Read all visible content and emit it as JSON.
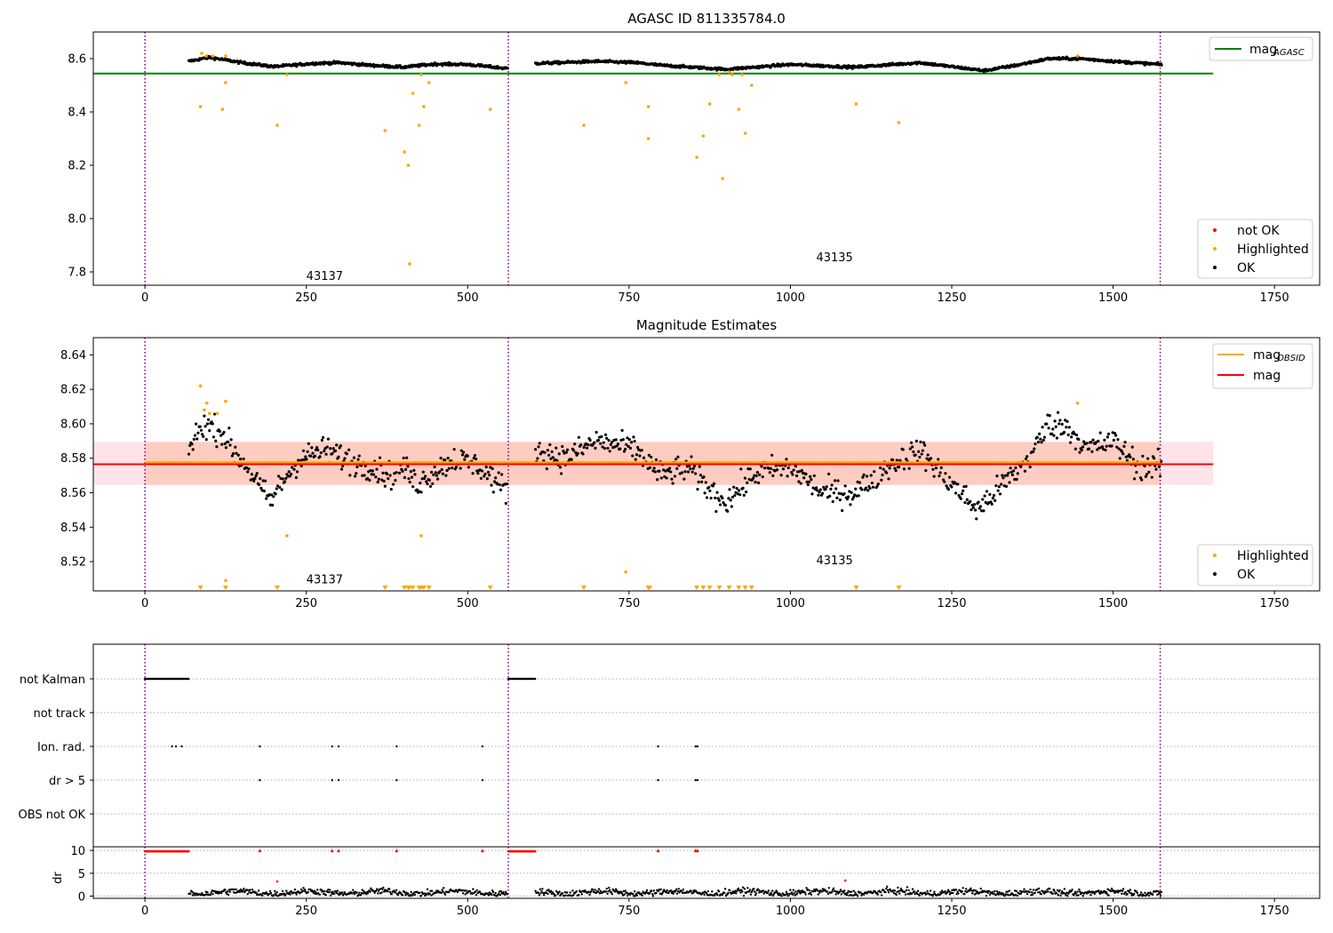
{
  "chart_data": [
    {
      "type": "scatter",
      "title": "AGASC ID 811335784.0",
      "xlim": [
        -80,
        1820
      ],
      "ylim": [
        7.75,
        8.7
      ],
      "xticks": [
        0,
        250,
        500,
        750,
        1000,
        1250,
        1500,
        1750
      ],
      "yticks": [
        7.8,
        8.0,
        8.2,
        8.4,
        8.6
      ],
      "vlines": [
        0,
        563,
        1573
      ],
      "obsid_labels": [
        {
          "text": "43137",
          "x": 250,
          "y": 7.77
        },
        {
          "text": "43135",
          "x": 1040,
          "y": 7.84
        }
      ],
      "ref_line": {
        "name": "mag_AGASC",
        "y": 8.544,
        "x": [
          -80,
          1655
        ],
        "color": "#008000"
      },
      "legend_top": {
        "label": "mag",
        "sub": "AGASC",
        "color": "#008000"
      },
      "legend_bottom": [
        {
          "label": "not OK",
          "color": "#ff0000"
        },
        {
          "label": "Highlighted",
          "color": "#ffa500"
        },
        {
          "label": "OK",
          "color": "#000000"
        }
      ],
      "ok_segments": [
        {
          "x_range": [
            68,
            562
          ],
          "base": [
            [
              68,
              8.59
            ],
            [
              100,
              8.605
            ],
            [
              150,
              8.585
            ],
            [
              200,
              8.57
            ],
            [
              260,
              8.582
            ],
            [
              300,
              8.585
            ],
            [
              350,
              8.575
            ],
            [
              400,
              8.568
            ],
            [
              450,
              8.58
            ],
            [
              500,
              8.578
            ],
            [
              562,
              8.563
            ]
          ]
        },
        {
          "x_range": [
            605,
            1575
          ],
          "base": [
            [
              605,
              8.582
            ],
            [
              700,
              8.59
            ],
            [
              760,
              8.585
            ],
            [
              800,
              8.575
            ],
            [
              900,
              8.56
            ],
            [
              1000,
              8.578
            ],
            [
              1100,
              8.568
            ],
            [
              1200,
              8.585
            ],
            [
              1300,
              8.555
            ],
            [
              1350,
              8.575
            ],
            [
              1400,
              8.6
            ],
            [
              1450,
              8.6
            ],
            [
              1500,
              8.59
            ],
            [
              1575,
              8.578
            ]
          ]
        }
      ],
      "highlighted": [
        [
          86,
          8.42
        ],
        [
          88,
          8.62
        ],
        [
          95,
          8.61
        ],
        [
          105,
          8.61
        ],
        [
          120,
          8.41
        ],
        [
          125,
          8.61
        ],
        [
          125,
          8.51
        ],
        [
          205,
          8.35
        ],
        [
          220,
          8.54
        ],
        [
          372,
          8.33
        ],
        [
          402,
          8.25
        ],
        [
          408,
          8.2
        ],
        [
          410,
          7.83
        ],
        [
          415,
          8.47
        ],
        [
          425,
          8.35
        ],
        [
          428,
          8.54
        ],
        [
          432,
          8.42
        ],
        [
          440,
          8.51
        ],
        [
          535,
          8.41
        ],
        [
          680,
          8.35
        ],
        [
          745,
          8.51
        ],
        [
          780,
          8.42
        ],
        [
          780,
          8.3
        ],
        [
          855,
          8.23
        ],
        [
          865,
          8.31
        ],
        [
          875,
          8.43
        ],
        [
          890,
          8.54
        ],
        [
          895,
          8.15
        ],
        [
          905,
          8.55
        ],
        [
          910,
          8.54
        ],
        [
          920,
          8.41
        ],
        [
          925,
          8.54
        ],
        [
          930,
          8.32
        ],
        [
          940,
          8.5
        ],
        [
          1102,
          8.43
        ],
        [
          1168,
          8.36
        ],
        [
          1445,
          8.61
        ]
      ]
    },
    {
      "type": "scatter",
      "title": "Magnitude Estimates",
      "xlim": [
        -80,
        1820
      ],
      "ylim": [
        8.503,
        8.65
      ],
      "xticks": [
        0,
        250,
        500,
        750,
        1000,
        1250,
        1500,
        1750
      ],
      "yticks": [
        8.52,
        8.54,
        8.56,
        8.58,
        8.6,
        8.62,
        8.64
      ],
      "vlines": [
        0,
        563,
        1573
      ],
      "obsid_labels": [
        {
          "text": "43137",
          "x": 250,
          "y": 8.5075
        },
        {
          "text": "43135",
          "x": 1040,
          "y": 8.5185
        }
      ],
      "band_mag": {
        "y0": 8.5645,
        "y1": 8.5895,
        "x": [
          -80,
          1655
        ],
        "color": "#ffc0cb"
      },
      "band_obsid": {
        "y0": 8.5645,
        "y1": 8.5895,
        "x": [
          0,
          1573
        ],
        "color": "#ffa07a"
      },
      "line_obsid": {
        "name": "mag_OBSID",
        "y": 8.5775,
        "x": [
          0,
          1573
        ],
        "color": "#ffa500"
      },
      "line_mag": {
        "name": "mag",
        "y": 8.5765,
        "x": [
          -80,
          1655
        ],
        "color": "#ff0000"
      },
      "legend_top": [
        {
          "label": "mag",
          "sub": "OBSID",
          "color": "#ffa500"
        },
        {
          "label": "mag",
          "sub": "",
          "color": "#ff0000"
        }
      ],
      "legend_bottom": [
        {
          "label": "Highlighted",
          "color": "#ffa500"
        },
        {
          "label": "OK",
          "color": "#000000"
        }
      ],
      "ok_segments": [
        {
          "x_range": [
            68,
            562
          ],
          "base": [
            [
              68,
              8.585
            ],
            [
              90,
              8.6
            ],
            [
              120,
              8.595
            ],
            [
              140,
              8.582
            ],
            [
              160,
              8.575
            ],
            [
              180,
              8.562
            ],
            [
              195,
              8.555
            ],
            [
              210,
              8.565
            ],
            [
              240,
              8.58
            ],
            [
              280,
              8.585
            ],
            [
              320,
              8.578
            ],
            [
              350,
              8.575
            ],
            [
              380,
              8.57
            ],
            [
              400,
              8.575
            ],
            [
              420,
              8.565
            ],
            [
              440,
              8.57
            ],
            [
              480,
              8.58
            ],
            [
              520,
              8.575
            ],
            [
              562,
              8.56
            ]
          ]
        },
        {
          "x_range": [
            605,
            1575
          ],
          "base": [
            [
              605,
              8.585
            ],
            [
              650,
              8.58
            ],
            [
              700,
              8.59
            ],
            [
              760,
              8.585
            ],
            [
              800,
              8.57
            ],
            [
              840,
              8.575
            ],
            [
              880,
              8.56
            ],
            [
              900,
              8.555
            ],
            [
              950,
              8.572
            ],
            [
              1000,
              8.575
            ],
            [
              1050,
              8.56
            ],
            [
              1100,
              8.56
            ],
            [
              1150,
              8.575
            ],
            [
              1200,
              8.585
            ],
            [
              1250,
              8.565
            ],
            [
              1290,
              8.55
            ],
            [
              1330,
              8.565
            ],
            [
              1370,
              8.58
            ],
            [
              1400,
              8.6
            ],
            [
              1430,
              8.598
            ],
            [
              1460,
              8.585
            ],
            [
              1500,
              8.59
            ],
            [
              1540,
              8.575
            ],
            [
              1575,
              8.575
            ]
          ]
        }
      ],
      "highlighted": [
        [
          86,
          8.622
        ],
        [
          92,
          8.608
        ],
        [
          96,
          8.612
        ],
        [
          100,
          8.606
        ],
        [
          112,
          8.606
        ],
        [
          125,
          8.613
        ],
        [
          125,
          8.509
        ],
        [
          220,
          8.535
        ],
        [
          428,
          8.535
        ],
        [
          745,
          8.514
        ],
        [
          1445,
          8.612
        ]
      ],
      "clipped_markers": [
        86,
        125,
        205,
        372,
        402,
        408,
        410,
        415,
        425,
        428,
        432,
        440,
        535,
        680,
        780,
        782,
        855,
        865,
        875,
        890,
        905,
        920,
        930,
        940,
        1102,
        1168
      ]
    },
    {
      "type": "scatter",
      "xlim": [
        -80,
        1820
      ],
      "xticks": [
        0,
        250,
        500,
        750,
        1000,
        1250,
        1500,
        1750
      ],
      "vlines": [
        0,
        563,
        1573
      ],
      "flag_rows": [
        "not Kalman",
        "not track",
        "Ion. rad.",
        "dr > 5",
        "OBS not OK"
      ],
      "flag_points": {
        "not Kalman": {
          "ranges": [
            [
              0,
              68
            ],
            [
              563,
              605
            ]
          ]
        },
        "not track": {
          "ranges": []
        },
        "Ion. rad.": {
          "points": [
            42,
            48,
            57,
            178,
            290,
            300,
            390,
            523,
            795,
            853,
            856
          ]
        },
        "dr > 5": {
          "points": [
            178,
            290,
            300,
            390,
            523,
            795,
            853,
            856
          ]
        },
        "OBS not OK": {
          "points": []
        }
      },
      "dr_panel": {
        "ylabel": "dr",
        "ylim": [
          -0.5,
          10.8
        ],
        "yticks": [
          0,
          5,
          10
        ],
        "clip_value": 10,
        "clipped_ranges": [
          [
            0,
            68
          ],
          [
            563,
            605
          ]
        ],
        "clipped_points": [
          178,
          290,
          300,
          390,
          523,
          795,
          853,
          856
        ],
        "red_points": [
          [
            205,
            3.2
          ],
          [
            1085,
            3.4
          ]
        ],
        "ok_ranges": [
          [
            68,
            562
          ],
          [
            605,
            1575
          ]
        ]
      }
    }
  ]
}
